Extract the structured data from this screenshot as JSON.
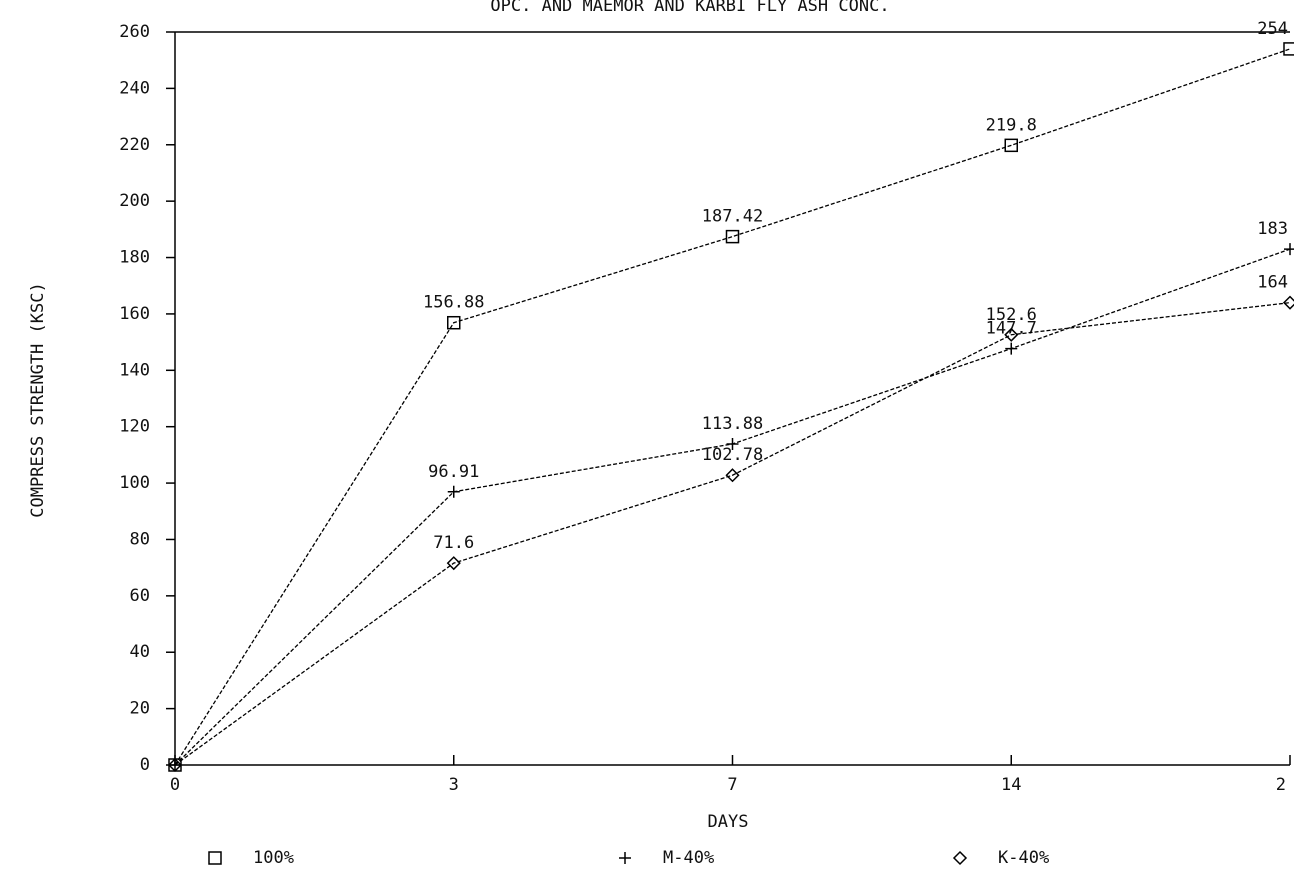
{
  "chart_data": {
    "type": "line",
    "title": "OPC. AND MAEMOR AND KARBI FLY ASH CONC.",
    "x_label": "DAYS",
    "y_label": "COMPRESS STRENGTH (KSC)",
    "categories": [
      "0",
      "3",
      "7",
      "14",
      "2"
    ],
    "series": [
      {
        "name": "100%",
        "color": "#000000",
        "marker": "square",
        "values": [
          0,
          156.88,
          187.42,
          219.8,
          254
        ]
      },
      {
        "name": "M-40%",
        "color": "#000000",
        "marker": "plus",
        "values": [
          0,
          96.91,
          113.88,
          147.7,
          183
        ]
      },
      {
        "name": "K-40%",
        "color": "#000000",
        "marker": "diamond",
        "values": [
          0,
          71.6,
          102.78,
          152.6,
          164
        ]
      }
    ],
    "ylim": [
      0,
      260
    ],
    "yticks": [
      0,
      20,
      40,
      60,
      80,
      100,
      120,
      140,
      160,
      180,
      200,
      220,
      240,
      260
    ],
    "grid": false
  }
}
